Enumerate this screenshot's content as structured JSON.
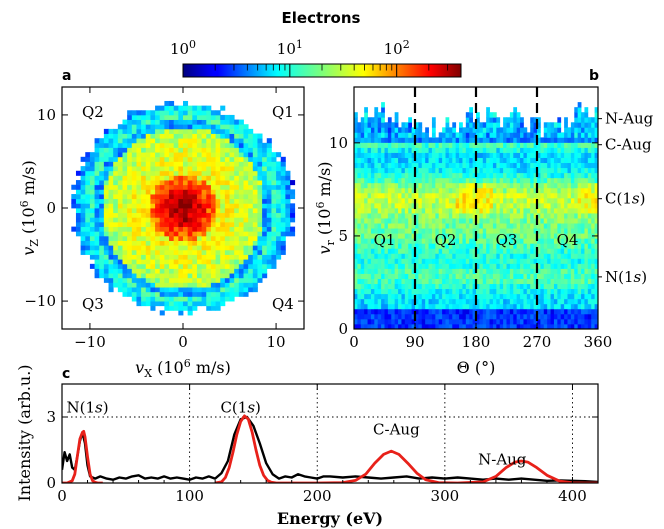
{
  "colorbar": {
    "title": "Electrons",
    "scale": "log",
    "range": [
      1,
      400
    ],
    "tick_labels": [
      "10^0",
      "10^1",
      "10^2"
    ],
    "tick_values": [
      1,
      10,
      100
    ],
    "colormap": "jet"
  },
  "chart_data": [
    {
      "panel": "a",
      "type": "heatmap",
      "xlabel": "v_X (10^6 m/s)",
      "ylabel": "v_Z (10^6 m/s)",
      "xlim": [
        -13,
        13
      ],
      "ylim": [
        -13,
        13
      ],
      "xticks": [
        -10,
        0,
        10
      ],
      "yticks": [
        -10,
        0,
        10
      ],
      "quadrant_labels": [
        "Q1",
        "Q2",
        "Q3",
        "Q4"
      ],
      "description_values": {
        "peak_counts": 300,
        "center": [
          0,
          0
        ],
        "outer_ring_radius": 11.5,
        "inner_ring_radius": 8.7
      }
    },
    {
      "panel": "b",
      "type": "heatmap",
      "xlabel": "Θ (°)",
      "ylabel": "v_r (10^6 m/s)",
      "xlim": [
        0,
        360
      ],
      "ylim": [
        0,
        13
      ],
      "xticks": [
        0,
        90,
        180,
        270,
        360
      ],
      "yticks": [
        0,
        5,
        10
      ],
      "dashed_lines_x": [
        90,
        180,
        270
      ],
      "quadrant_labels": [
        "Q1",
        "Q2",
        "Q3",
        "Q4"
      ],
      "right_labels": [
        {
          "text": "N-Aug",
          "v": 11.3
        },
        {
          "text": "C-Aug",
          "v": 9.9
        },
        {
          "text": "C(1s)",
          "v": 7.0
        },
        {
          "text": "N(1s)",
          "v": 2.8
        }
      ]
    },
    {
      "panel": "c",
      "type": "line",
      "xlabel": "Energy (eV)",
      "ylabel": "Intensity (arb.u.)",
      "xlim": [
        0,
        420
      ],
      "ylim": [
        0,
        4.5
      ],
      "xticks": [
        0,
        100,
        200,
        300,
        400
      ],
      "yticks": [
        0,
        3
      ],
      "grid": "dotted",
      "series": [
        {
          "color": "#000000",
          "x": [
            0,
            2,
            4,
            6,
            8,
            10,
            12,
            14,
            16,
            18,
            20,
            22,
            24,
            26,
            28,
            30,
            35,
            40,
            45,
            50,
            55,
            60,
            65,
            70,
            75,
            80,
            85,
            90,
            95,
            100,
            105,
            110,
            115,
            120,
            125,
            130,
            135,
            140,
            145,
            150,
            155,
            160,
            165,
            170,
            175,
            180,
            185,
            190,
            195,
            200,
            205,
            210,
            220,
            230,
            240,
            250,
            260,
            270,
            280,
            290,
            300,
            310,
            320,
            330,
            340,
            350,
            360,
            370,
            380,
            390,
            400,
            410,
            420
          ],
          "y": [
            0.6,
            1.4,
            1.0,
            1.3,
            0.7,
            0.6,
            1.2,
            1.9,
            2.3,
            1.8,
            0.8,
            0.3,
            0.25,
            0.2,
            0.25,
            0.3,
            0.2,
            0.15,
            0.25,
            0.2,
            0.3,
            0.35,
            0.2,
            0.25,
            0.2,
            0.3,
            0.2,
            0.25,
            0.2,
            0.15,
            0.25,
            0.2,
            0.3,
            0.2,
            0.45,
            1.0,
            2.2,
            2.9,
            3.0,
            2.6,
            1.8,
            0.9,
            0.4,
            0.2,
            0.3,
            0.25,
            0.4,
            0.3,
            0.25,
            0.2,
            0.3,
            0.3,
            0.25,
            0.3,
            0.25,
            0.2,
            0.25,
            0.3,
            0.2,
            0.25,
            0.2,
            0.25,
            0.2,
            0.15,
            0.2,
            0.15,
            0.2,
            0.15,
            0.1,
            0.12,
            0.1,
            0.08,
            0.05
          ]
        },
        {
          "color": "#e8211a",
          "x": [
            0,
            4,
            8,
            10,
            12,
            14,
            16,
            17,
            18,
            20,
            22,
            24,
            26,
            28,
            32
          ],
          "y": [
            0,
            0,
            0.1,
            0.4,
            1.2,
            2.0,
            2.3,
            2.35,
            2.1,
            1.2,
            0.4,
            0.1,
            0.03,
            0,
            0
          ]
        },
        {
          "color": "#e8211a",
          "x": [
            120,
            125,
            128,
            131,
            134,
            137,
            140,
            143,
            146,
            149,
            152,
            155,
            158,
            161,
            164,
            168,
            172,
            180
          ],
          "y": [
            0,
            0.05,
            0.25,
            0.7,
            1.4,
            2.2,
            2.8,
            3.05,
            2.9,
            2.3,
            1.5,
            0.8,
            0.35,
            0.12,
            0.03,
            0,
            0,
            0
          ]
        },
        {
          "color": "#e8211a",
          "x": [
            180,
            200,
            220,
            230,
            238,
            245,
            252,
            258,
            264,
            271,
            278,
            285,
            295,
            310,
            330,
            340,
            348,
            355,
            360,
            365,
            372,
            380,
            390,
            400,
            410,
            420
          ],
          "y": [
            0,
            0,
            0.02,
            0.12,
            0.4,
            0.9,
            1.3,
            1.45,
            1.3,
            0.9,
            0.45,
            0.15,
            0.02,
            0,
            0.05,
            0.3,
            0.7,
            0.95,
            1.0,
            0.95,
            0.7,
            0.35,
            0.08,
            0.01,
            0,
            0
          ]
        }
      ],
      "annotations": [
        {
          "text": "N(1s)",
          "x": 20,
          "y": 3.2
        },
        {
          "text": "C(1s)",
          "x": 140,
          "y": 3.2
        },
        {
          "text": "C-Aug",
          "x": 262,
          "y": 2.2
        },
        {
          "text": "N-Aug",
          "x": 345,
          "y": 0.85
        }
      ]
    }
  ]
}
